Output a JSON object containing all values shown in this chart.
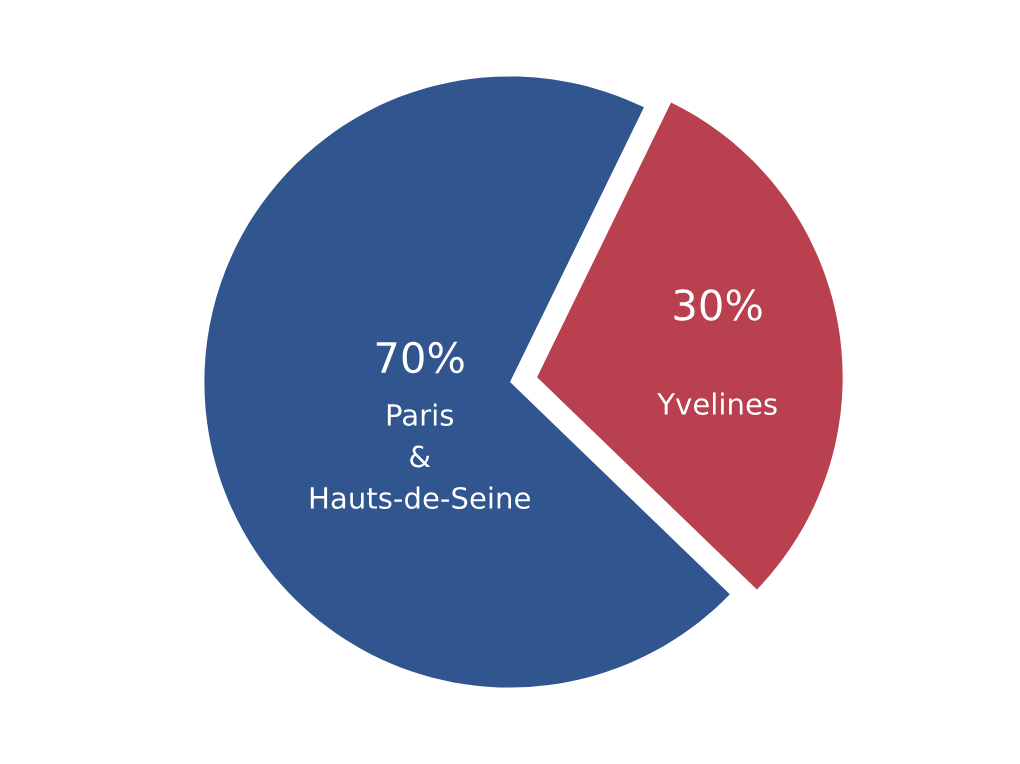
{
  "chart_data": {
    "type": "pie",
    "categories": [
      "Paris\n&\nHauts-de-Seine",
      "Yvelines"
    ],
    "values": [
      70,
      30
    ],
    "colors": [
      "#31558f",
      "#b9404f"
    ],
    "value_labels": [
      "70%",
      "30%"
    ],
    "legend": false
  }
}
